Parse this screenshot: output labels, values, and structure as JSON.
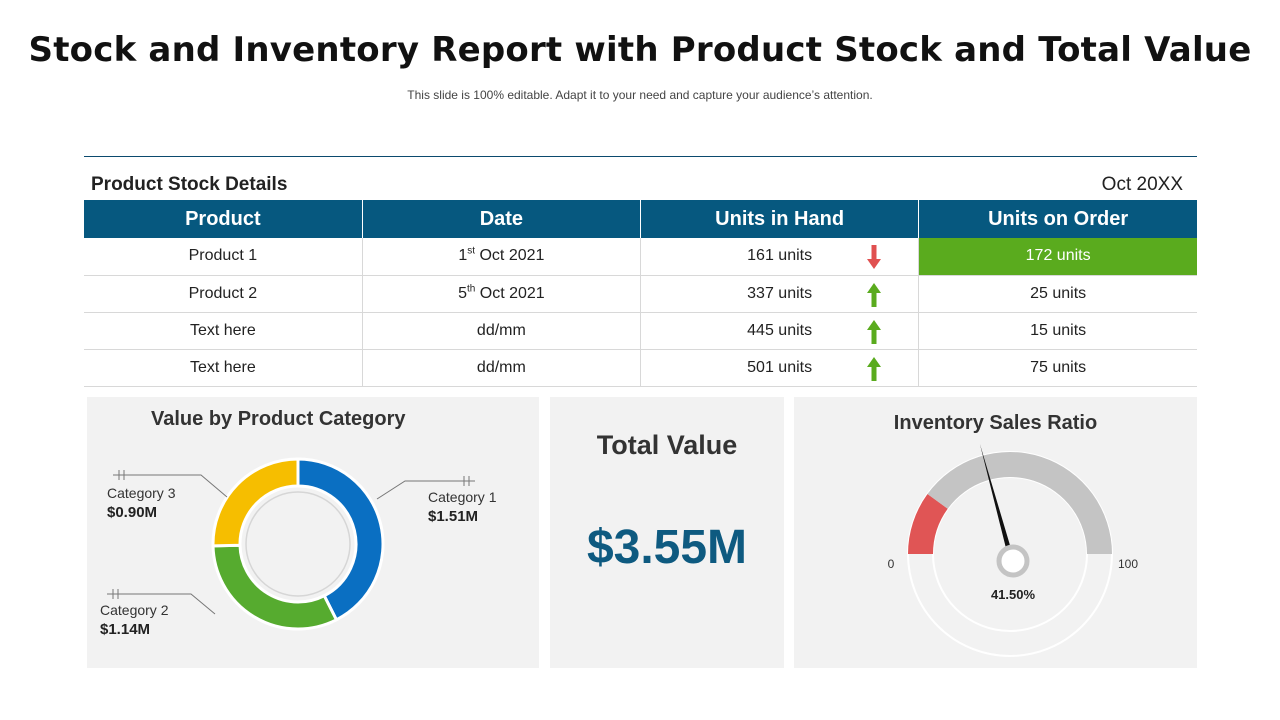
{
  "header": {
    "title": "Stock and Inventory Report with Product Stock and Total Value",
    "subtitle": "This slide is 100% editable. Adapt it to your need and capture your audience’s attention."
  },
  "stock": {
    "section_title": "Product Stock Details",
    "period": "Oct 20XX",
    "columns": [
      "Product",
      "Date",
      "Units in Hand",
      "Units on Order"
    ],
    "rows": [
      {
        "product": "Product 1",
        "date_day": "1",
        "date_suffix": "st",
        "date_rest": " Oct 2021",
        "in_hand": "161 units",
        "trend": "down",
        "on_order": "172 units",
        "highlight": true
      },
      {
        "product": "Product 2",
        "date_day": "5",
        "date_suffix": "th",
        "date_rest": " Oct 2021",
        "in_hand": "337 units",
        "trend": "up",
        "on_order": "25 units",
        "highlight": false
      },
      {
        "product": "Text here",
        "date_day": "dd/mm",
        "date_suffix": "",
        "date_rest": "",
        "in_hand": "445 units",
        "trend": "up",
        "on_order": "15 units",
        "highlight": false
      },
      {
        "product": "Text here",
        "date_day": "dd/mm",
        "date_suffix": "",
        "date_rest": "",
        "in_hand": "501 units",
        "trend": "up",
        "on_order": "75 units",
        "highlight": false
      }
    ],
    "colors": {
      "header": "#06587f",
      "highlight": "#5aab1e",
      "up": "#5aab1e",
      "down": "#e05050"
    }
  },
  "total": {
    "title": "Total Value",
    "value": "$3.55M"
  },
  "chart_data": [
    {
      "type": "pie",
      "title": "Value by Product Category",
      "categories": [
        "Category 1",
        "Category 2",
        "Category 3"
      ],
      "values": [
        1.51,
        1.14,
        0.9
      ],
      "labels": [
        "$1.51M",
        "$1.14M",
        "$0.90M"
      ],
      "colors": [
        "#0a6fc2",
        "#56ab2f",
        "#f6be00"
      ],
      "donut": true
    },
    {
      "type": "gauge",
      "title": "Inventory Sales Ratio",
      "min": 0,
      "max": 100,
      "min_label": "0",
      "max_label": "100",
      "value": 41.5,
      "value_label": "41.50%",
      "red_band_end": 20,
      "colors": {
        "red": "#e05555",
        "grey": "#c4c4c4",
        "needle": "#111111"
      }
    }
  ]
}
